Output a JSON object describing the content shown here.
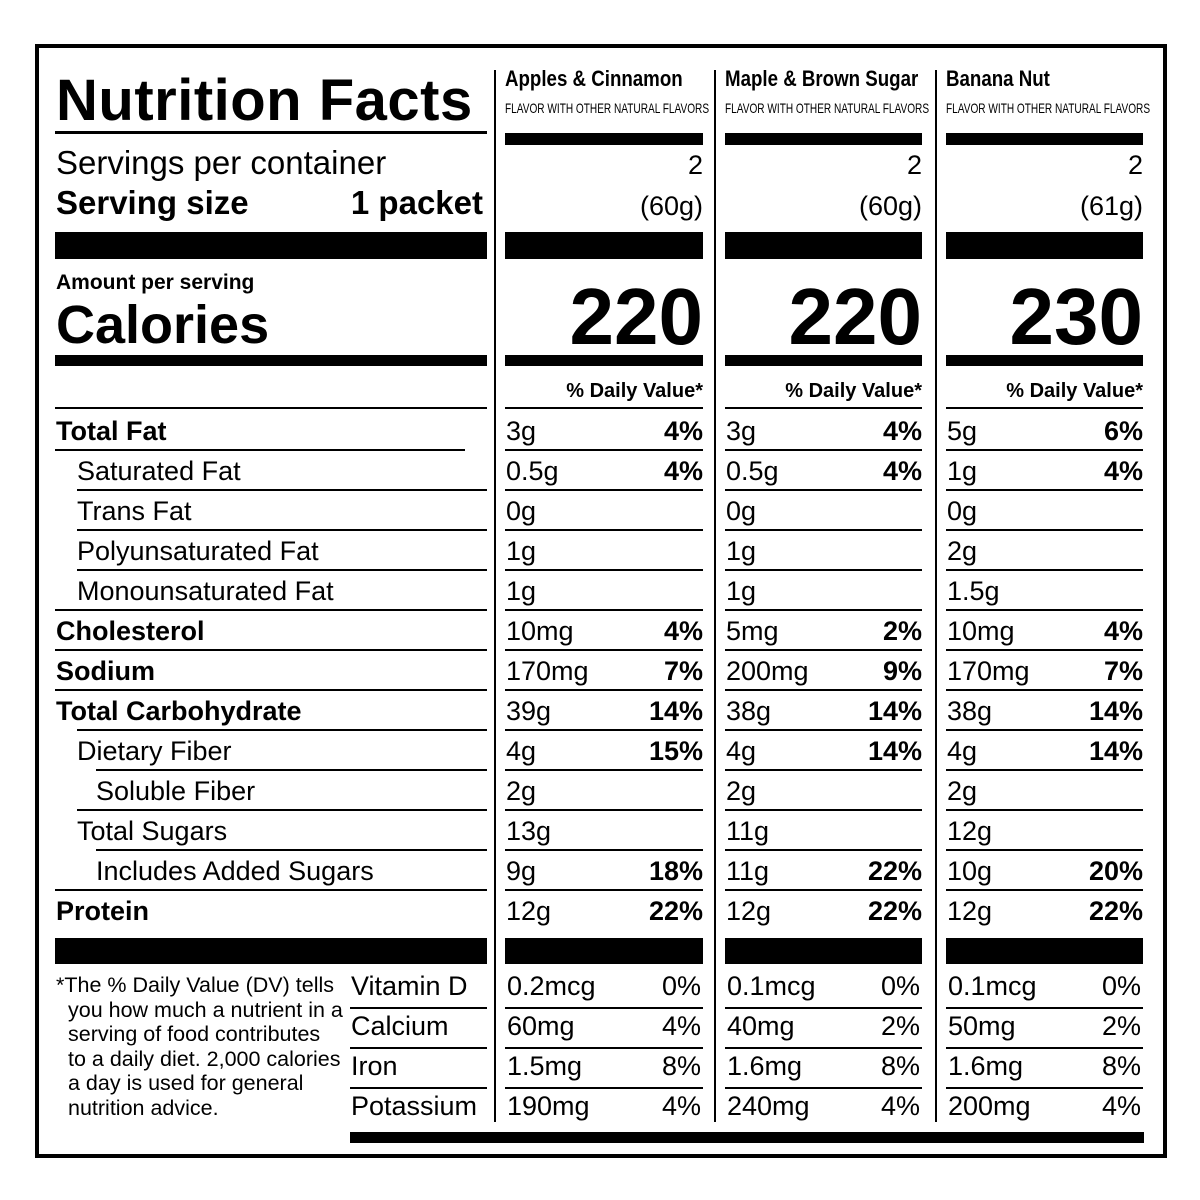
{
  "title": "Nutrition Facts",
  "servings_label": "Servings per container",
  "serving_size_label": "Serving size",
  "serving_size": "1 packet",
  "amount_per_serving": "Amount per serving",
  "calories_label": "Calories",
  "daily_value_header": "% Daily Value*",
  "nutrient_labels": [
    "Total Fat",
    "Saturated Fat",
    "Trans Fat",
    "Polyunsaturated Fat",
    "Monounsaturated Fat",
    "Cholesterol",
    "Sodium",
    "Total Carbohydrate",
    "Dietary Fiber",
    "Soluble Fiber",
    "Total Sugars",
    "Includes Added Sugars",
    "Protein"
  ],
  "vitamin_labels": [
    "Vitamin D",
    "Calcium",
    "Iron",
    "Potassium"
  ],
  "footnote": "*The % Daily Value (DV) tells you how much a nutrient in a serving of food contributes to a daily diet. 2,000 calories a day is used for general nutrition advice.",
  "products": [
    {
      "name": "Apples & Cinnamon",
      "subtitle": "FLAVOR WITH OTHER NATURAL FLAVORS",
      "servings": 2,
      "serving_size": "(60g)",
      "calories": 220,
      "nutrients": [
        [
          "3g",
          "4%"
        ],
        [
          "0.5g",
          "4%"
        ],
        [
          "0g",
          null
        ],
        [
          "1g",
          null
        ],
        [
          "1g",
          null
        ],
        [
          "10mg",
          "4%"
        ],
        [
          "170mg",
          "7%"
        ],
        [
          "39g",
          "14%"
        ],
        [
          "4g",
          "15%"
        ],
        [
          "2g",
          null
        ],
        [
          "13g",
          null
        ],
        [
          "9g",
          "18%"
        ],
        [
          "12g",
          "22%"
        ]
      ],
      "vitamins": [
        [
          "0.2mcg",
          "0%"
        ],
        [
          "60mg",
          "4%"
        ],
        [
          "1.5mg",
          "8%"
        ],
        [
          "190mg",
          "4%"
        ]
      ]
    },
    {
      "name": "Maple & Brown Sugar",
      "subtitle": "FLAVOR WITH OTHER NATURAL FLAVORS",
      "servings": 2,
      "serving_size": "(60g)",
      "calories": 220,
      "nutrients": [
        [
          "3g",
          "4%"
        ],
        [
          "0.5g",
          "4%"
        ],
        [
          "0g",
          null
        ],
        [
          "1g",
          null
        ],
        [
          "1g",
          null
        ],
        [
          "5mg",
          "2%"
        ],
        [
          "200mg",
          "9%"
        ],
        [
          "38g",
          "14%"
        ],
        [
          "4g",
          "14%"
        ],
        [
          "2g",
          null
        ],
        [
          "11g",
          null
        ],
        [
          "11g",
          "22%"
        ],
        [
          "12g",
          "22%"
        ]
      ],
      "vitamins": [
        [
          "0.1mcg",
          "0%"
        ],
        [
          "40mg",
          "2%"
        ],
        [
          "1.6mg",
          "8%"
        ],
        [
          "240mg",
          "4%"
        ]
      ]
    },
    {
      "name": "Banana Nut",
      "subtitle": "FLAVOR WITH OTHER NATURAL FLAVORS",
      "servings": 2,
      "serving_size": "(61g)",
      "calories": 230,
      "nutrients": [
        [
          "5g",
          "6%"
        ],
        [
          "1g",
          "4%"
        ],
        [
          "0g",
          null
        ],
        [
          "2g",
          null
        ],
        [
          "1.5g",
          null
        ],
        [
          "10mg",
          "4%"
        ],
        [
          "170mg",
          "7%"
        ],
        [
          "38g",
          "14%"
        ],
        [
          "4g",
          "14%"
        ],
        [
          "2g",
          null
        ],
        [
          "12g",
          null
        ],
        [
          "10g",
          "20%"
        ],
        [
          "12g",
          "22%"
        ]
      ],
      "vitamins": [
        [
          "0.1mcg",
          "0%"
        ],
        [
          "50mg",
          "2%"
        ],
        [
          "1.6mg",
          "8%"
        ],
        [
          "200mg",
          "4%"
        ]
      ]
    }
  ]
}
